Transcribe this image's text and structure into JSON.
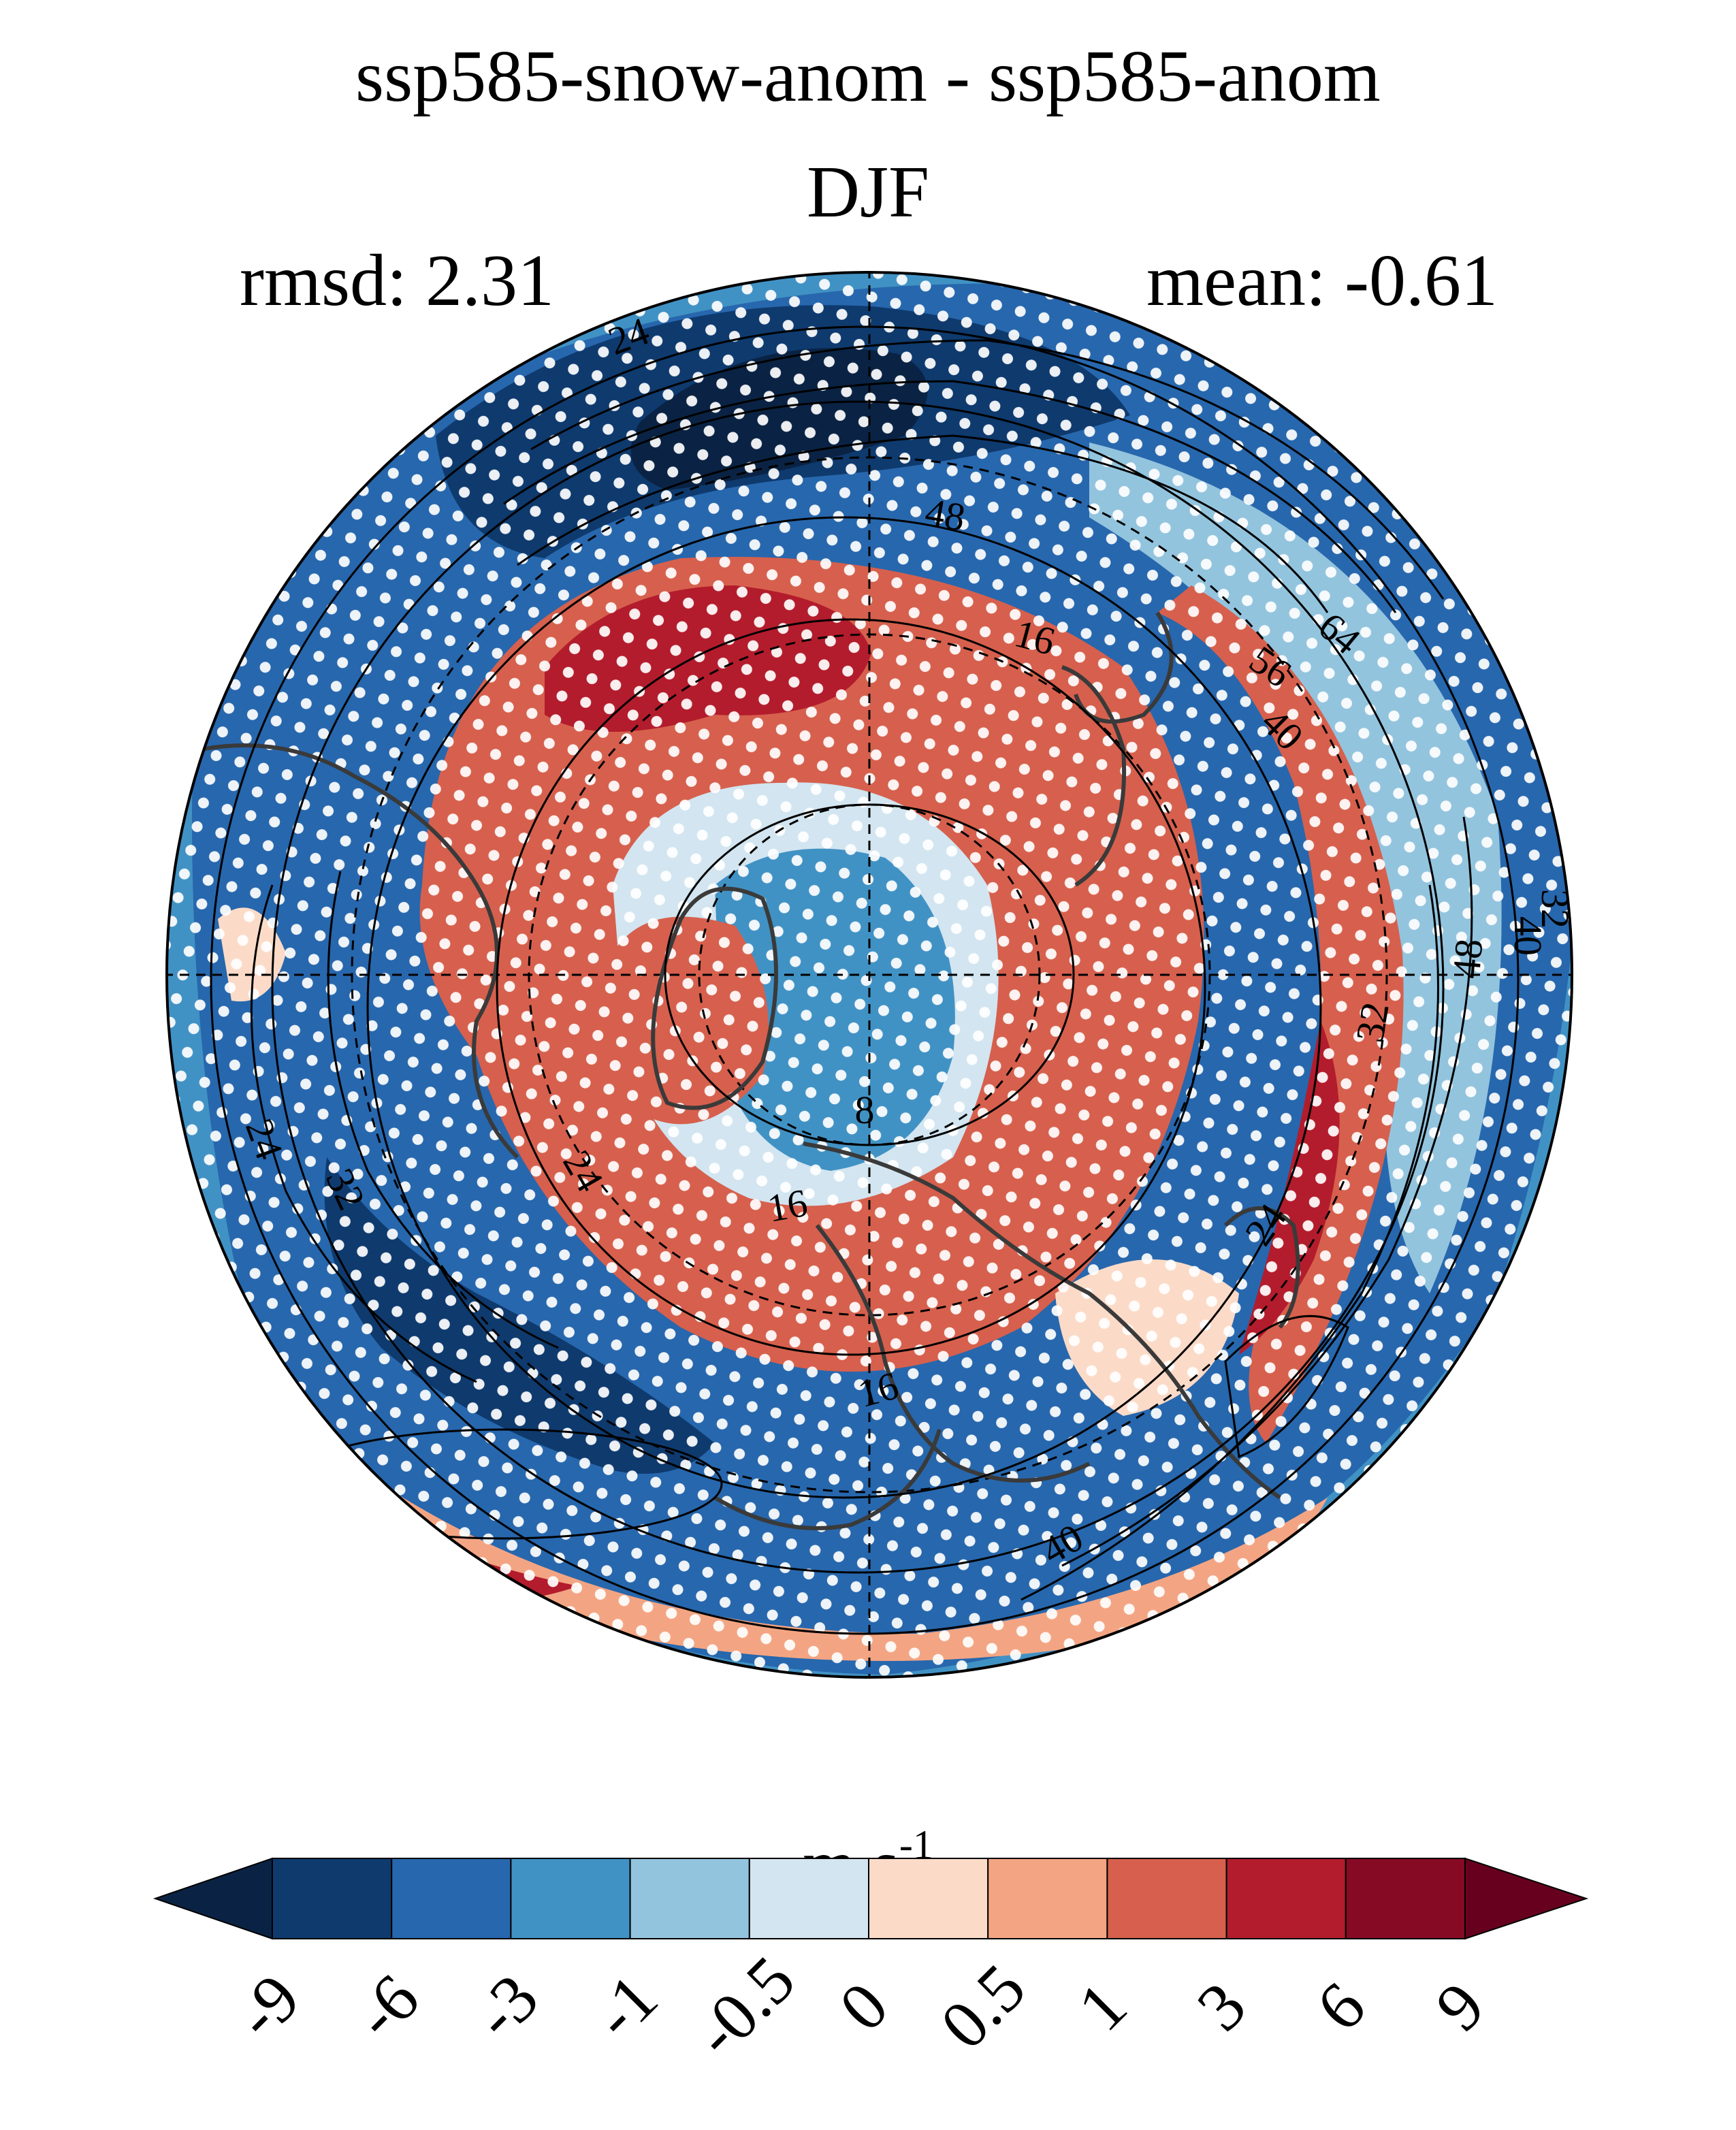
{
  "title": "ssp585-snow-anom - ssp585-anom",
  "season": "DJF",
  "rmsd_text": "rmsd: 2.31",
  "mean_text": "mean: -0.61",
  "colorbar": {
    "unit_base": "m s",
    "unit_exp": "-1",
    "tick_labels": [
      "-9",
      "-6",
      "-3",
      "-1",
      "-0.5",
      "0",
      "0.5",
      "1",
      "3",
      "6",
      "9"
    ],
    "colors": [
      "#0a2344",
      "#0e3a6e",
      "#2767ad",
      "#4192c4",
      "#93c4de",
      "#d2e5f0",
      "#fbdbc8",
      "#f3a583",
      "#d6604d",
      "#b31c2c",
      "#870a24",
      "#67001f"
    ]
  },
  "contour_labels": [
    "24",
    "48",
    "16",
    "56",
    "64",
    "40",
    "32",
    "40",
    "48",
    "32",
    "8",
    "16",
    "24",
    "24",
    "32",
    "24",
    "16",
    "40",
    "24"
  ]
}
